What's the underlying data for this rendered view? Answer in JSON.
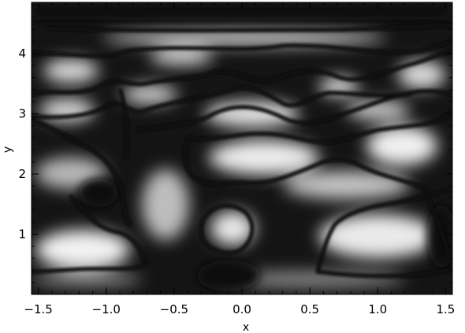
{
  "chart_data": {
    "type": "heatmap",
    "title": "",
    "xlabel": "x",
    "ylabel": "y",
    "xlim": [
      -1.55,
      1.55
    ],
    "ylim": [
      0.0,
      4.85
    ],
    "x_ticks": [
      -1.5,
      -1.0,
      -0.5,
      0.0,
      0.5,
      1.0,
      1.5
    ],
    "x_tick_labels": [
      "−1.5",
      "−1.0",
      "−0.5",
      "0.0",
      "0.5",
      "1.0",
      "1.5"
    ],
    "y_ticks": [
      1,
      2,
      3,
      4
    ],
    "y_tick_labels": [
      "1",
      "2",
      "3",
      "4"
    ],
    "colormap": "grayscale",
    "grid": false,
    "legend": "none",
    "colors": {
      "low": "#000000",
      "high": "#ffffff",
      "axis": "#000000"
    }
  }
}
